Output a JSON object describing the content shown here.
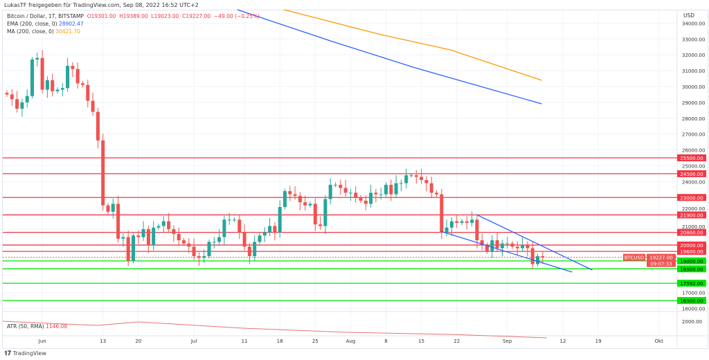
{
  "header": {
    "shared": "LukasTF freigegeben für TradingView.com, Sep 08, 2022 16:52 UTC+2"
  },
  "legend": {
    "symbol": "Bitcoin / Dollar, 1T, BITSTAMP",
    "o": "O19301.00",
    "h": "H19389.00",
    "l": "L19023.00",
    "c": "C19227.00",
    "chg": "−49.00 (−0.25%)",
    "ema_label": "EMA (200, close, 0)",
    "ema_val": "28902.47",
    "ma_label": "MA (200, close, 0)",
    "ma_val": "30421.70",
    "atr_label": "ATR (50, RMA)",
    "atr_val": "1146.08"
  },
  "colors": {
    "up": "#26a69a",
    "down": "#ef5350",
    "red_level": "#f23645",
    "green_level": "#00e600",
    "ema": "#2962ff",
    "ma": "#ff9800",
    "atr": "#e57373"
  },
  "chart_data": {
    "type": "candlestick",
    "currency": "USD",
    "first_open": 29600,
    "closes": [
      29500,
      29200,
      28600,
      29000,
      29400,
      31700,
      31800,
      29800,
      30400,
      29700,
      29800,
      29900,
      31300,
      31100,
      30200,
      30100,
      29100,
      28400,
      26600,
      22500,
      22100,
      22600,
      20400,
      20500,
      19000,
      20600,
      20500,
      21000,
      20000,
      21100,
      21200,
      21500,
      21000,
      20700,
      20300,
      20100,
      19900,
      19300,
      19200,
      19300,
      20200,
      20200,
      20500,
      21600,
      21600,
      21600,
      20800,
      19900,
      19300,
      20200,
      20600,
      20800,
      21200,
      20800,
      22400,
      23400,
      23200,
      23100,
      22700,
      22500,
      22600,
      21300,
      21200,
      22900,
      23800,
      23800,
      23600,
      23300,
      23300,
      23000,
      22800,
      22600,
      23300,
      23200,
      23200,
      23800,
      23200,
      23900,
      23900,
      24400,
      24400,
      24300,
      24100,
      23900,
      23300,
      23200,
      20800,
      21100,
      21500,
      21400,
      21500,
      21400,
      21600,
      20300,
      20000,
      19600,
      20300,
      19800,
      20100,
      20100,
      19900,
      19800,
      20000,
      19800,
      18800,
      19300,
      19227
    ],
    "ema": [
      [
        45.6,
        34845
      ],
      [
        64.4,
        32837
      ],
      [
        80.8,
        31177
      ],
      [
        105.8,
        28906
      ]
    ],
    "ma": [
      [
        54.8,
        34845
      ],
      [
        74,
        33273
      ],
      [
        87.7,
        32312
      ],
      [
        105.8,
        30391
      ]
    ],
    "channel": [
      [
        [
          92.9,
          21919
        ],
        [
          115.8,
          18426
        ]
      ],
      [
        [
          85.8,
          20871
        ],
        [
          111.8,
          18295
        ]
      ]
    ],
    "red_levels": [
      "25500.00",
      "24500.00",
      "23000.00",
      "21900.00",
      "20800.00",
      "20000.00",
      "19600.00"
    ],
    "green_levels": [
      "19000.00",
      "18500.00",
      "17592.00",
      "16500.00"
    ],
    "y_ticks": [
      "34000.00",
      "33000.00",
      "32000.00",
      "31000.00",
      "30000.00",
      "29000.00",
      "28000.00",
      "27000.00",
      "26000.00",
      "25000.00",
      "24000.00",
      "22000.00",
      "21000.00",
      "17000.00",
      "16000.00"
    ],
    "atr_tick": "2000.00",
    "current": {
      "label": "BTCUSD",
      "price": "19227.00",
      "countdown": "09:07:33"
    },
    "x_ticks": [
      [
        "Jun",
        7
      ],
      [
        "13",
        19
      ],
      [
        "20",
        26
      ],
      [
        "Jul",
        37
      ],
      [
        "11",
        47
      ],
      [
        "18",
        54
      ],
      [
        "25",
        61
      ],
      [
        "Aug",
        68
      ],
      [
        "8",
        75
      ],
      [
        "15",
        82
      ],
      [
        "22",
        89
      ],
      [
        "Sep",
        99
      ],
      [
        "12",
        110
      ],
      [
        "19",
        117
      ],
      [
        "Okt",
        129
      ]
    ]
  },
  "footer": {
    "brand": "TradingView"
  }
}
